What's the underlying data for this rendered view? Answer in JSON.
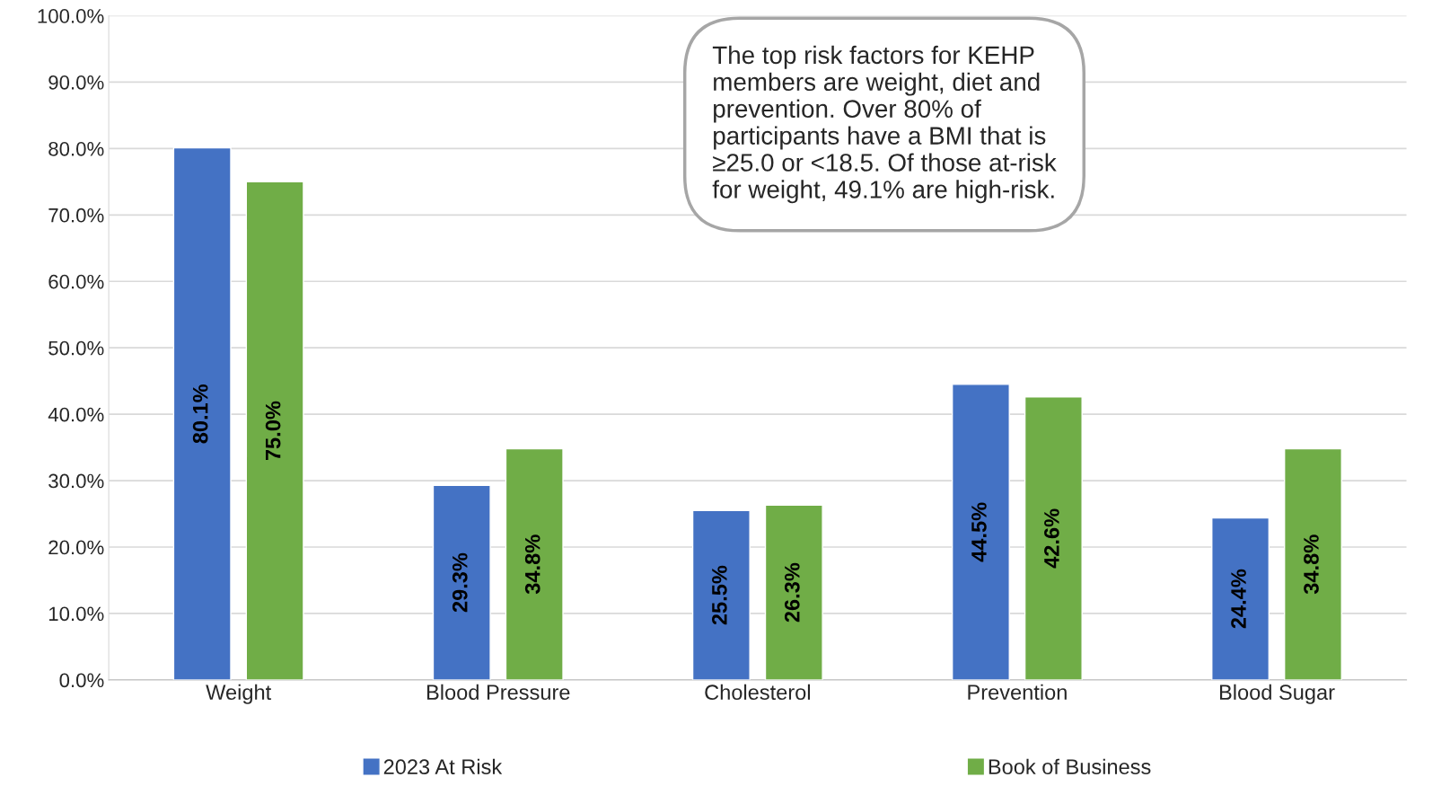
{
  "chart_data": {
    "type": "bar",
    "categories": [
      "Weight",
      "Blood Pressure",
      "Cholesterol",
      "Prevention",
      "Blood Sugar"
    ],
    "series": [
      {
        "name": "2023 At Risk",
        "color": "#4472c4",
        "values": [
          80.1,
          29.3,
          25.5,
          44.5,
          24.4
        ],
        "value_labels": [
          "80.1%",
          "29.3%",
          "25.5%",
          "44.5%",
          "24.4%"
        ]
      },
      {
        "name": "Book of Business",
        "color": "#70ad47",
        "values": [
          75.0,
          34.8,
          26.3,
          42.6,
          34.8
        ],
        "value_labels": [
          "75.0%",
          "34.8%",
          "26.3%",
          "42.6%",
          "34.8%"
        ]
      }
    ],
    "ylim": [
      0,
      100
    ],
    "yticks": [
      {
        "value": 0,
        "label": "0.0%"
      },
      {
        "value": 10,
        "label": "10.0%"
      },
      {
        "value": 20,
        "label": "20.0%"
      },
      {
        "value": 30,
        "label": "30.0%"
      },
      {
        "value": 40,
        "label": "40.0%"
      },
      {
        "value": 50,
        "label": "50.0%"
      },
      {
        "value": 60,
        "label": "60.0%"
      },
      {
        "value": 70,
        "label": "70.0%"
      },
      {
        "value": 80,
        "label": "80.0%"
      },
      {
        "value": 90,
        "label": "90.0%"
      },
      {
        "value": 100,
        "label": "100.0%"
      }
    ],
    "grid": "y",
    "legend": "bottom",
    "annotations": [
      "The top risk factors for KEHP\nmembers are weight, diet and\nprevention. Over 80% of\nparticipants have a BMI that is\n≥25.0 or <18.5. Of those at-risk\nfor weight, 49.1% are high-risk."
    ]
  }
}
